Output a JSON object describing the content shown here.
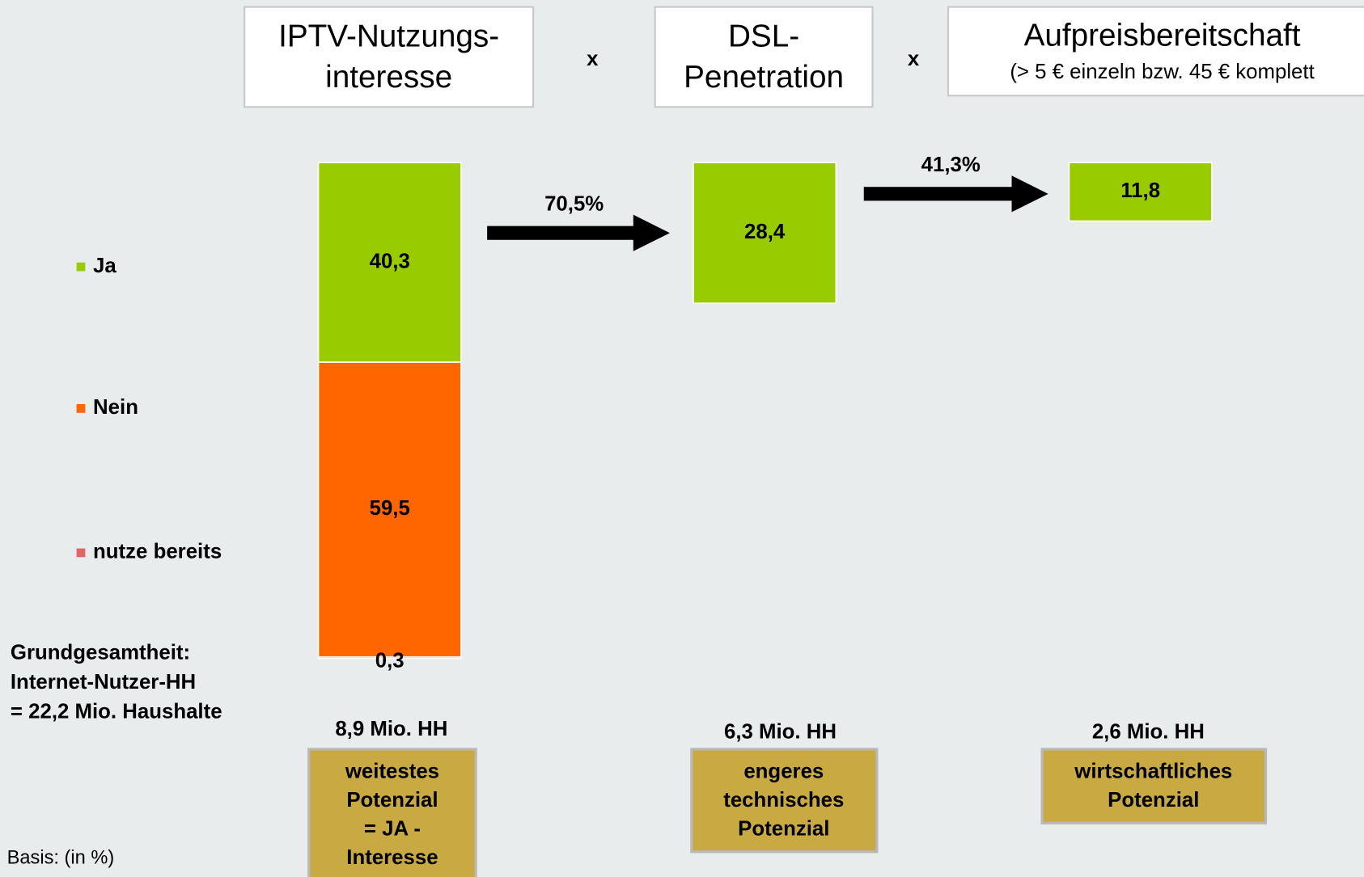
{
  "headers": [
    {
      "lines": [
        "IPTV-Nutzungs-",
        "interesse"
      ]
    },
    {
      "lines": [
        "DSL-",
        "Penetration"
      ]
    },
    {
      "lines": [
        "Aufpreisbereitschaft",
        "(> 5 € einzeln bzw. 45 € komplett"
      ]
    }
  ],
  "operators": [
    "x",
    "x"
  ],
  "chart_data": {
    "type": "stacked_funnel",
    "series": [
      {
        "name": "Ja",
        "color": "#99cc00",
        "values": [
          40.3,
          28.4,
          11.8
        ],
        "value_labels": [
          "40,3",
          "28,4",
          "11,8"
        ]
      },
      {
        "name": "Nein",
        "color": "#ff6600",
        "values": [
          59.5,
          null,
          null
        ],
        "value_labels": [
          "59,5",
          null,
          null
        ]
      },
      {
        "name": "nutze bereits",
        "color": "#e06666",
        "values": [
          0.3,
          null,
          null
        ],
        "value_labels": [
          "0,3",
          null,
          null
        ]
      }
    ],
    "ylim": [
      0,
      100
    ],
    "arrow_labels": [
      "70,5%",
      "41,3%"
    ],
    "totals": [
      "8,9 Mio. HH",
      "6,3 Mio. HH",
      "2,6 Mio. HH"
    ],
    "potential_boxes": [
      [
        "weitestes",
        "Potenzial",
        "= JA -",
        "Interesse"
      ],
      [
        "engeres",
        "technisches",
        "Potenzial"
      ],
      [
        "wirtschaftliches",
        "Potenzial"
      ]
    ]
  },
  "base_note": [
    "Grundgesamtheit:",
    "Internet-Nutzer-HH",
    "= 22,2 Mio. Haushalte"
  ],
  "footer": "Basis: (in %)"
}
